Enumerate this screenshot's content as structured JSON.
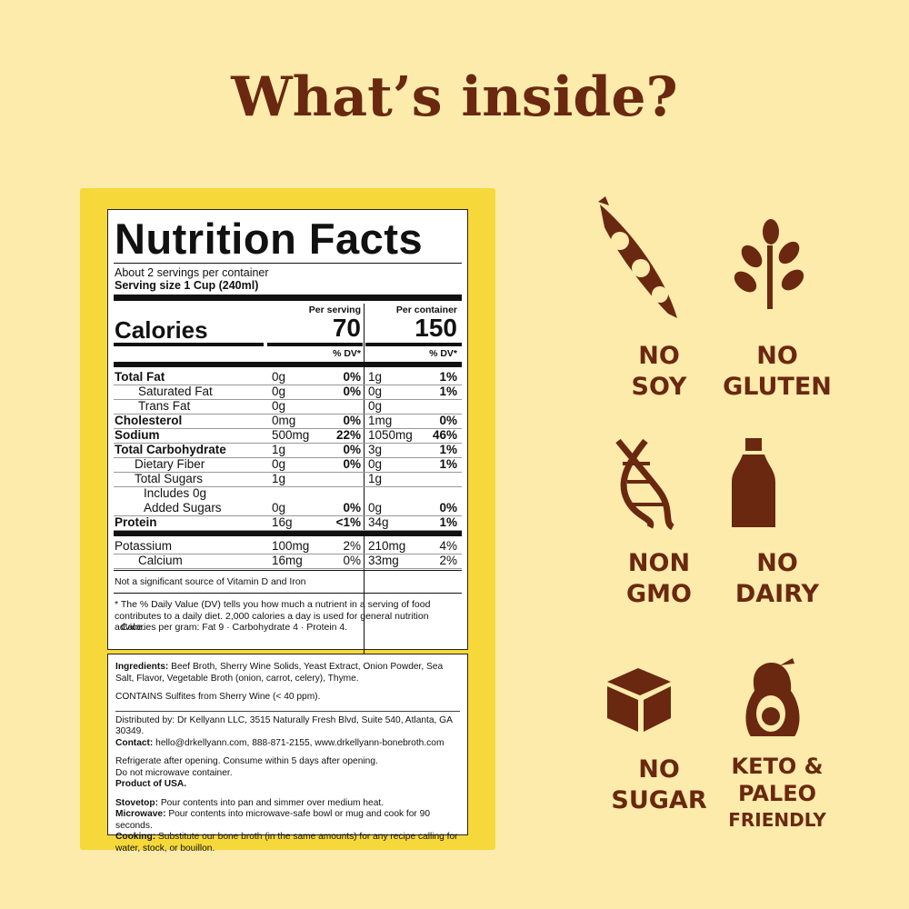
{
  "header": {
    "title": "What’s inside?"
  },
  "nutrition": {
    "title": "Nutrition Facts",
    "servings": "About 2 servings per container",
    "serving_size": "Serving size 1 Cup (240ml)",
    "per_serving": "Per serving",
    "per_container": "Per container",
    "calories_label": "Calories",
    "calories_serving": "70",
    "calories_container": "150",
    "dv_header": "% DV*",
    "rows": [
      {
        "label": "Total Fat",
        "serving_amount": "0g",
        "serving_dv": "0%",
        "container_amount": "1g",
        "container_dv": "1%"
      },
      {
        "label": "Saturated Fat",
        "serving_amount": "0g",
        "serving_dv": "0%",
        "container_amount": "0g",
        "container_dv": "1%"
      },
      {
        "label": "Trans Fat",
        "serving_amount": "0g",
        "container_amount": "0g"
      },
      {
        "label": "Cholesterol",
        "serving_amount": "0mg",
        "serving_dv": "0%",
        "container_amount": "1mg",
        "container_dv": "0%"
      },
      {
        "label": "Sodium",
        "serving_amount": "500mg",
        "serving_dv": "22%",
        "container_amount": "1050mg",
        "container_dv": "46%"
      },
      {
        "label": "Total Carbohydrate",
        "serving_amount": "1g",
        "serving_dv": "0%",
        "container_amount": "3g",
        "container_dv": "1%"
      },
      {
        "label": "Dietary Fiber",
        "serving_amount": "0g",
        "serving_dv": "0%",
        "container_amount": "0g",
        "container_dv": "1%"
      },
      {
        "label": "Total Sugars",
        "serving_amount": "1g",
        "container_amount": "1g"
      },
      {
        "label": "Includes 0g Added Sugars",
        "serving_amount": "0g",
        "serving_dv": "0%",
        "container_amount": "0g",
        "container_dv": "0%"
      },
      {
        "label": "Protein",
        "serving_amount": "16g",
        "serving_dv": "<1%",
        "container_amount": "34g",
        "container_dv": "1%"
      }
    ],
    "minerals": [
      {
        "label": "Potassium",
        "serving_amount": "100mg",
        "serving_dv": "2%",
        "container_amount": "210mg",
        "container_dv": "4%"
      },
      {
        "label": "Calcium",
        "serving_amount": "16mg",
        "serving_dv": "0%",
        "container_amount": "33mg",
        "container_dv": "2%"
      }
    ],
    "note": "Not a significant source of Vitamin D and Iron",
    "footnote": "* The % Daily Value (DV) tells you how much a nutrient in a serving of food contributes to a daily diet. 2,000 calories a day is used for general nutrition advice.",
    "calories_per_gram": "Calories per gram: Fat 9 · Carbohydrate 4 · Protein 4."
  },
  "info": {
    "ingredients_label": "Ingredients:",
    "ingredients": "Beef Broth, Sherry Wine Solids, Yeast Extract, Onion Powder, Sea Salt, Flavor, Vegetable Broth (onion, carrot, celery), Thyme.",
    "contains": "CONTAINS Sulfites from Sherry Wine (< 40 ppm).",
    "distributed": "Distributed by: Dr Kellyann LLC, 3515 Naturally Fresh Blvd, Suite 540, Atlanta, GA 30349.",
    "contact_label": "Contact:",
    "contact": "hello@drkellyann.com, 888-871-2155, www.drkellyann-bonebroth.com",
    "storage": "Refrigerate after opening. Consume within 5 days after opening.",
    "microwave_note": "Do not microwave container.",
    "origin": "Product of USA.",
    "directions": [
      {
        "label": "Stovetop:",
        "text": "Pour contents into pan and simmer over medium heat."
      },
      {
        "label": "Microwave:",
        "text": "Pour contents into microwave-safe bowl or mug and cook for 90 seconds."
      },
      {
        "label": "Cooking:",
        "text": "Substitute our bone broth (in the same amounts) for any recipe calling for water, stock, or bouillon."
      }
    ]
  },
  "badges": [
    {
      "lines": [
        "NO",
        "SOY"
      ]
    },
    {
      "lines": [
        "NO",
        "GLUTEN"
      ]
    },
    {
      "lines": [
        "NON",
        "GMO"
      ]
    },
    {
      "lines": [
        "NO",
        "DAIRY"
      ]
    },
    {
      "lines": [
        "NO",
        "SUGAR"
      ]
    },
    {
      "lines": [
        "KETO &",
        "PALEO",
        "FRIENDLY"
      ]
    }
  ]
}
